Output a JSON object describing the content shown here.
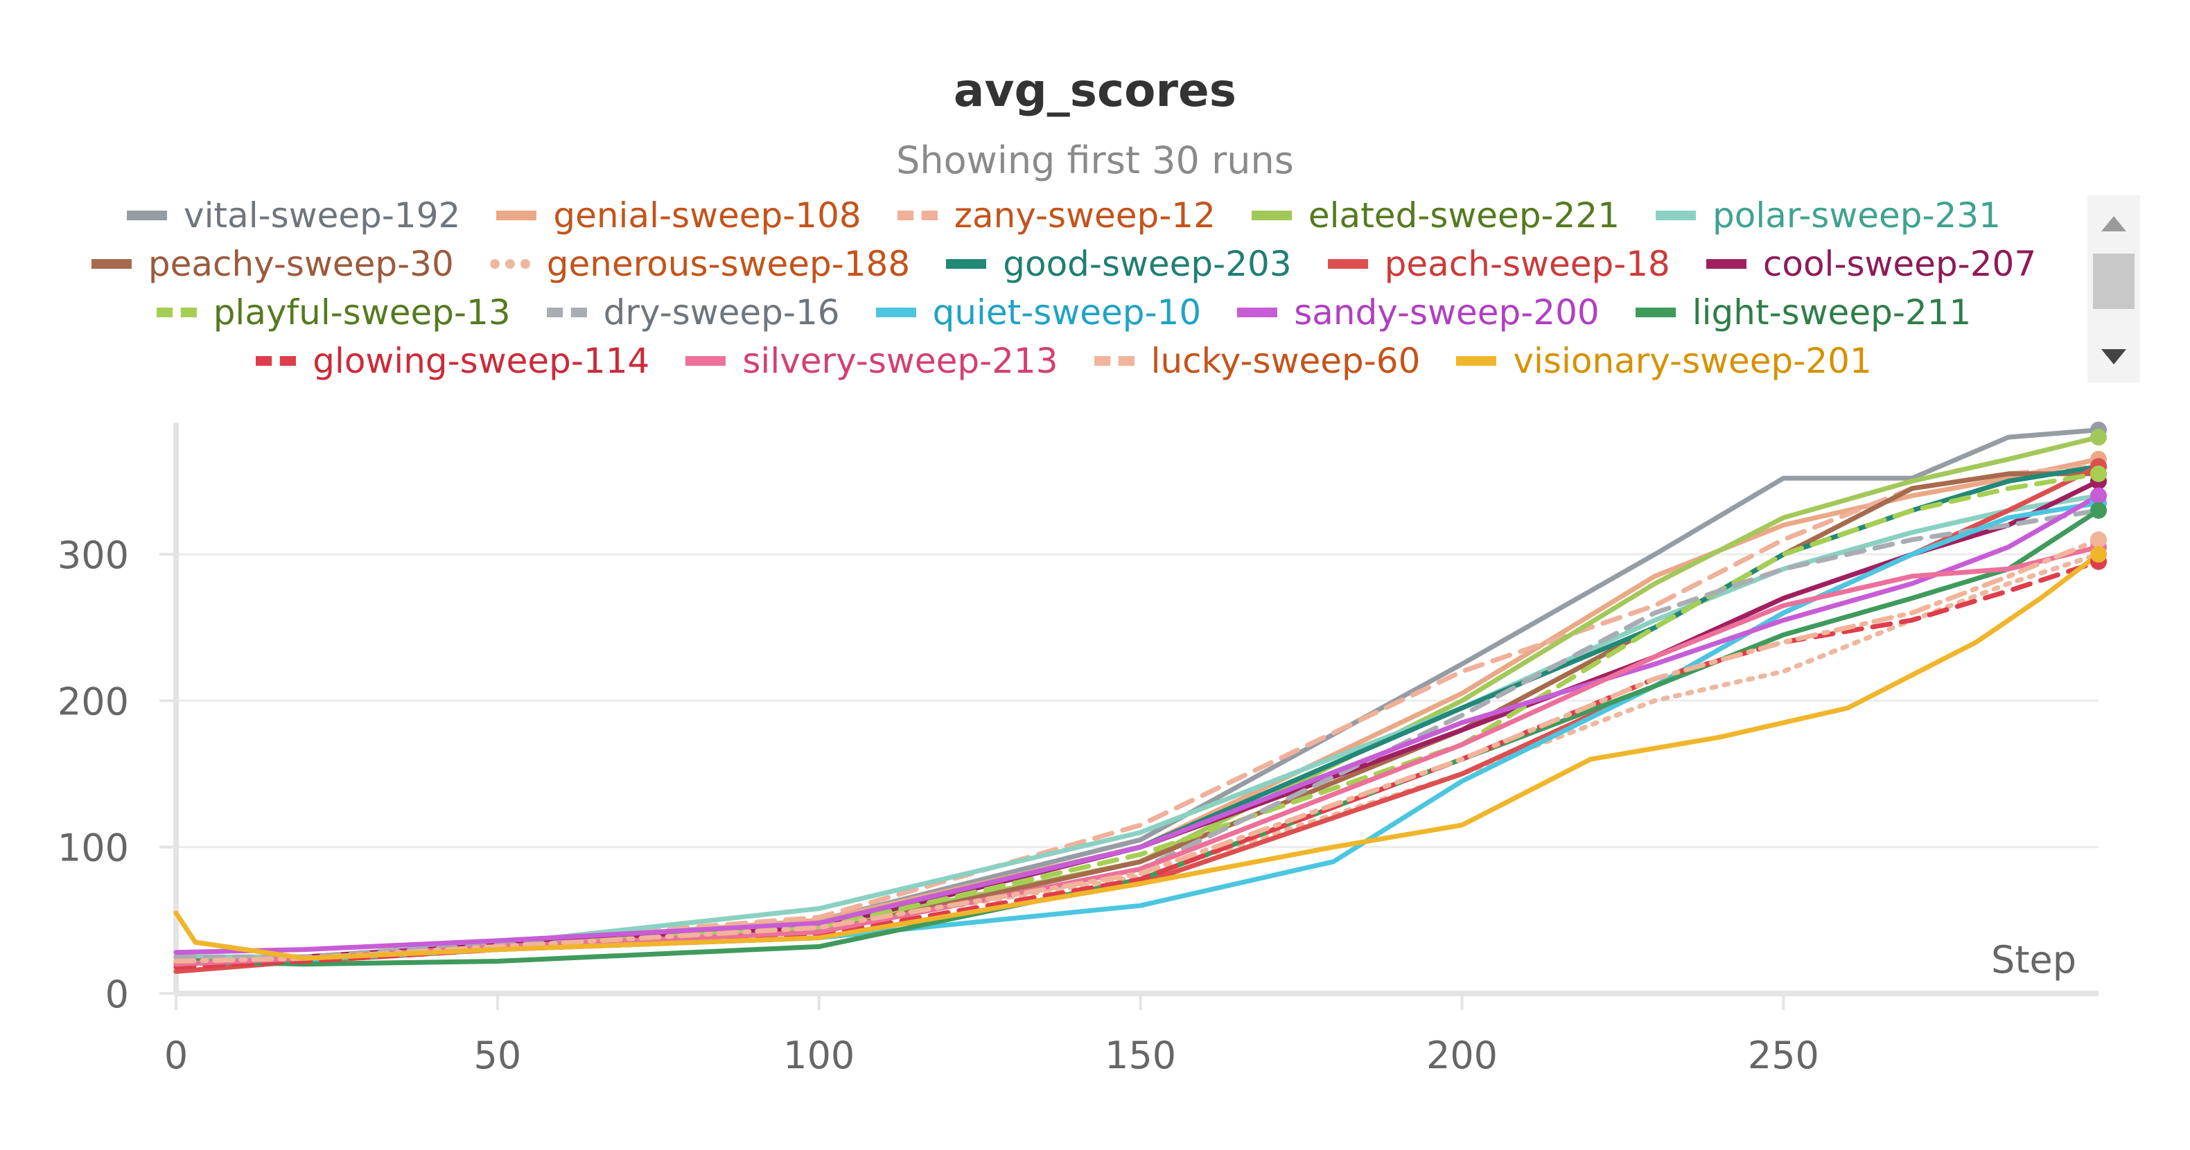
{
  "title": "avg_scores",
  "subtitle": "Showing first 30 runs",
  "legend": {
    "rows": [
      [
        {
          "name": "vital-sweep-192",
          "color": "#959ca3",
          "dash": "solid"
        },
        {
          "name": "genial-sweep-108",
          "color": "#eaa886",
          "dash": "solid"
        },
        {
          "name": "zany-sweep-12",
          "color": "#f0b09a",
          "dash": "dashed"
        },
        {
          "name": "elated-sweep-221",
          "color": "#a3c85a",
          "dash": "solid"
        },
        {
          "name": "polar-sweep-231",
          "color": "#8ad1c2",
          "dash": "solid"
        }
      ],
      [
        {
          "name": "peachy-sweep-30",
          "color": "#a86a4d",
          "dash": "solid"
        },
        {
          "name": "generous-sweep-188",
          "color": "#eeb7a0",
          "dash": "dotted"
        },
        {
          "name": "good-sweep-203",
          "color": "#228878",
          "dash": "solid"
        },
        {
          "name": "peach-sweep-18",
          "color": "#dd4f4f",
          "dash": "solid"
        },
        {
          "name": "cool-sweep-207",
          "color": "#a01f5f",
          "dash": "solid"
        }
      ],
      [
        {
          "name": "playful-sweep-13",
          "color": "#a6cf52",
          "dash": "dashed"
        },
        {
          "name": "dry-sweep-16",
          "color": "#a9adb3",
          "dash": "dashed"
        },
        {
          "name": "quiet-sweep-10",
          "color": "#4cc6e0",
          "dash": "solid"
        },
        {
          "name": "sandy-sweep-200",
          "color": "#c75dd6",
          "dash": "solid"
        },
        {
          "name": "light-sweep-211",
          "color": "#3f9a5c",
          "dash": "solid"
        }
      ],
      [
        {
          "name": "glowing-sweep-114",
          "color": "#df3d4a",
          "dash": "dashed"
        },
        {
          "name": "silvery-sweep-213",
          "color": "#ec709a",
          "dash": "solid"
        },
        {
          "name": "lucky-sweep-60",
          "color": "#f1b49a",
          "dash": "dashdot"
        },
        {
          "name": "visionary-sweep-201",
          "color": "#f0b52a",
          "dash": "solid"
        }
      ]
    ],
    "label_colors": {
      "vital-sweep-192": "#6e757c",
      "genial-sweep-108": "#c4531a",
      "zany-sweep-12": "#c4531a",
      "elated-sweep-221": "#557a1f",
      "polar-sweep-231": "#3ea38e",
      "peachy-sweep-30": "#9c5a3c",
      "generous-sweep-188": "#c4531a",
      "good-sweep-203": "#1f7f70",
      "peach-sweep-18": "#cc3a3a",
      "cool-sweep-207": "#8e1a55",
      "playful-sweep-13": "#557a1f",
      "dry-sweep-16": "#6e757c",
      "quiet-sweep-10": "#1fa3c4",
      "sandy-sweep-200": "#b03fc2",
      "light-sweep-211": "#2f7d48",
      "glowing-sweep-114": "#cc2a3a",
      "silvery-sweep-213": "#d4406e",
      "lucky-sweep-60": "#c4531a",
      "visionary-sweep-201": "#d69100"
    }
  },
  "chart_data": {
    "type": "line",
    "title": "avg_scores",
    "subtitle": "Showing first 30 runs",
    "xlabel": "Step",
    "ylabel": "",
    "xlim": [
      0,
      299
    ],
    "ylim": [
      0,
      390
    ],
    "xticks": [
      0,
      50,
      100,
      150,
      200,
      250
    ],
    "yticks": [
      0,
      100,
      200,
      300
    ],
    "grid": true,
    "legend_position": "top",
    "series": [
      {
        "name": "vital-sweep-192",
        "color": "#959ca3",
        "dash": "solid",
        "points": [
          [
            0,
            25
          ],
          [
            20,
            24
          ],
          [
            50,
            33
          ],
          [
            100,
            50
          ],
          [
            150,
            105
          ],
          [
            200,
            225
          ],
          [
            230,
            300
          ],
          [
            250,
            352
          ],
          [
            270,
            352
          ],
          [
            285,
            380
          ],
          [
            299,
            385
          ]
        ]
      },
      {
        "name": "genial-sweep-108",
        "color": "#eaa886",
        "dash": "solid",
        "points": [
          [
            0,
            22
          ],
          [
            20,
            25
          ],
          [
            50,
            34
          ],
          [
            100,
            50
          ],
          [
            150,
            100
          ],
          [
            200,
            205
          ],
          [
            230,
            285
          ],
          [
            250,
            320
          ],
          [
            270,
            340
          ],
          [
            285,
            352
          ],
          [
            299,
            365
          ]
        ]
      },
      {
        "name": "zany-sweep-12",
        "color": "#f0b09a",
        "dash": "dashed",
        "points": [
          [
            0,
            20
          ],
          [
            20,
            25
          ],
          [
            50,
            35
          ],
          [
            100,
            52
          ],
          [
            150,
            115
          ],
          [
            200,
            220
          ],
          [
            230,
            265
          ],
          [
            250,
            310
          ],
          [
            270,
            345
          ],
          [
            285,
            355
          ],
          [
            299,
            360
          ]
        ]
      },
      {
        "name": "elated-sweep-221",
        "color": "#a3c85a",
        "dash": "solid",
        "points": [
          [
            0,
            22
          ],
          [
            20,
            25
          ],
          [
            50,
            33
          ],
          [
            100,
            45
          ],
          [
            150,
            90
          ],
          [
            200,
            200
          ],
          [
            230,
            280
          ],
          [
            250,
            325
          ],
          [
            270,
            350
          ],
          [
            285,
            365
          ],
          [
            299,
            380
          ]
        ]
      },
      {
        "name": "polar-sweep-231",
        "color": "#8ad1c2",
        "dash": "solid",
        "points": [
          [
            0,
            25
          ],
          [
            20,
            25
          ],
          [
            50,
            34
          ],
          [
            100,
            58
          ],
          [
            150,
            110
          ],
          [
            200,
            195
          ],
          [
            230,
            255
          ],
          [
            250,
            290
          ],
          [
            270,
            315
          ],
          [
            285,
            330
          ],
          [
            299,
            340
          ]
        ]
      },
      {
        "name": "peachy-sweep-30",
        "color": "#a86a4d",
        "dash": "solid",
        "points": [
          [
            0,
            22
          ],
          [
            20,
            24
          ],
          [
            50,
            32
          ],
          [
            100,
            42
          ],
          [
            150,
            90
          ],
          [
            200,
            180
          ],
          [
            230,
            250
          ],
          [
            250,
            300
          ],
          [
            270,
            345
          ],
          [
            285,
            355
          ],
          [
            299,
            355
          ]
        ]
      },
      {
        "name": "generous-sweep-188",
        "color": "#eeb7a0",
        "dash": "dotted",
        "points": [
          [
            0,
            20
          ],
          [
            20,
            24
          ],
          [
            50,
            32
          ],
          [
            100,
            45
          ],
          [
            150,
            80
          ],
          [
            200,
            150
          ],
          [
            230,
            200
          ],
          [
            250,
            220
          ],
          [
            270,
            255
          ],
          [
            285,
            280
          ],
          [
            299,
            300
          ]
        ]
      },
      {
        "name": "good-sweep-203",
        "color": "#228878",
        "dash": "solid",
        "points": [
          [
            0,
            20
          ],
          [
            20,
            24
          ],
          [
            50,
            32
          ],
          [
            100,
            48
          ],
          [
            150,
            100
          ],
          [
            200,
            195
          ],
          [
            230,
            250
          ],
          [
            250,
            300
          ],
          [
            270,
            330
          ],
          [
            285,
            350
          ],
          [
            299,
            360
          ]
        ]
      },
      {
        "name": "peach-sweep-18",
        "color": "#dd4f4f",
        "dash": "solid",
        "points": [
          [
            0,
            15
          ],
          [
            20,
            22
          ],
          [
            50,
            30
          ],
          [
            100,
            38
          ],
          [
            150,
            75
          ],
          [
            200,
            150
          ],
          [
            230,
            210
          ],
          [
            250,
            260
          ],
          [
            270,
            300
          ],
          [
            285,
            330
          ],
          [
            299,
            360
          ]
        ]
      },
      {
        "name": "cool-sweep-207",
        "color": "#a01f5f",
        "dash": "solid",
        "points": [
          [
            0,
            20
          ],
          [
            20,
            25
          ],
          [
            50,
            33
          ],
          [
            100,
            45
          ],
          [
            150,
            100
          ],
          [
            200,
            180
          ],
          [
            230,
            230
          ],
          [
            250,
            270
          ],
          [
            270,
            300
          ],
          [
            285,
            320
          ],
          [
            299,
            350
          ]
        ]
      },
      {
        "name": "playful-sweep-13",
        "color": "#a6cf52",
        "dash": "dashed",
        "points": [
          [
            0,
            22
          ],
          [
            20,
            24
          ],
          [
            50,
            32
          ],
          [
            100,
            45
          ],
          [
            150,
            95
          ],
          [
            200,
            170
          ],
          [
            230,
            250
          ],
          [
            250,
            300
          ],
          [
            270,
            330
          ],
          [
            285,
            345
          ],
          [
            299,
            355
          ]
        ]
      },
      {
        "name": "dry-sweep-16",
        "color": "#a9adb3",
        "dash": "dashed",
        "points": [
          [
            0,
            25
          ],
          [
            20,
            25
          ],
          [
            50,
            33
          ],
          [
            100,
            42
          ],
          [
            150,
            85
          ],
          [
            200,
            190
          ],
          [
            230,
            260
          ],
          [
            250,
            290
          ],
          [
            270,
            310
          ],
          [
            285,
            320
          ],
          [
            299,
            330
          ]
        ]
      },
      {
        "name": "quiet-sweep-10",
        "color": "#4cc6e0",
        "dash": "solid",
        "points": [
          [
            0,
            20
          ],
          [
            20,
            23
          ],
          [
            50,
            30
          ],
          [
            100,
            38
          ],
          [
            150,
            60
          ],
          [
            180,
            90
          ],
          [
            200,
            145
          ],
          [
            230,
            210
          ],
          [
            250,
            260
          ],
          [
            270,
            300
          ],
          [
            285,
            325
          ],
          [
            299,
            335
          ]
        ]
      },
      {
        "name": "sandy-sweep-200",
        "color": "#c75dd6",
        "dash": "solid",
        "points": [
          [
            0,
            28
          ],
          [
            20,
            30
          ],
          [
            50,
            36
          ],
          [
            100,
            48
          ],
          [
            150,
            100
          ],
          [
            200,
            185
          ],
          [
            230,
            225
          ],
          [
            250,
            255
          ],
          [
            270,
            280
          ],
          [
            285,
            305
          ],
          [
            299,
            340
          ]
        ]
      },
      {
        "name": "light-sweep-211",
        "color": "#3f9a5c",
        "dash": "solid",
        "points": [
          [
            0,
            22
          ],
          [
            20,
            20
          ],
          [
            50,
            22
          ],
          [
            100,
            32
          ],
          [
            150,
            78
          ],
          [
            200,
            160
          ],
          [
            230,
            210
          ],
          [
            250,
            245
          ],
          [
            270,
            270
          ],
          [
            285,
            290
          ],
          [
            299,
            330
          ]
        ]
      },
      {
        "name": "glowing-sweep-114",
        "color": "#df3d4a",
        "dash": "dashed",
        "points": [
          [
            0,
            18
          ],
          [
            20,
            22
          ],
          [
            50,
            30
          ],
          [
            100,
            40
          ],
          [
            150,
            78
          ],
          [
            200,
            160
          ],
          [
            230,
            215
          ],
          [
            250,
            240
          ],
          [
            270,
            255
          ],
          [
            285,
            275
          ],
          [
            299,
            295
          ]
        ]
      },
      {
        "name": "silvery-sweep-213",
        "color": "#ec709a",
        "dash": "solid",
        "points": [
          [
            0,
            20
          ],
          [
            20,
            24
          ],
          [
            50,
            32
          ],
          [
            100,
            42
          ],
          [
            150,
            85
          ],
          [
            200,
            170
          ],
          [
            230,
            230
          ],
          [
            250,
            265
          ],
          [
            270,
            285
          ],
          [
            285,
            290
          ],
          [
            299,
            305
          ]
        ]
      },
      {
        "name": "lucky-sweep-60",
        "color": "#f1b49a",
        "dash": "dashdot",
        "points": [
          [
            0,
            22
          ],
          [
            20,
            24
          ],
          [
            50,
            32
          ],
          [
            100,
            45
          ],
          [
            150,
            82
          ],
          [
            200,
            160
          ],
          [
            230,
            215
          ],
          [
            250,
            240
          ],
          [
            270,
            260
          ],
          [
            285,
            285
          ],
          [
            299,
            310
          ]
        ]
      },
      {
        "name": "visionary-sweep-201",
        "color": "#f0b52a",
        "dash": "solid",
        "points": [
          [
            0,
            55
          ],
          [
            3,
            35
          ],
          [
            20,
            24
          ],
          [
            50,
            30
          ],
          [
            100,
            38
          ],
          [
            150,
            75
          ],
          [
            180,
            100
          ],
          [
            200,
            115
          ],
          [
            220,
            160
          ],
          [
            240,
            175
          ],
          [
            260,
            195
          ],
          [
            280,
            240
          ],
          [
            290,
            270
          ],
          [
            299,
            300
          ]
        ]
      }
    ]
  }
}
